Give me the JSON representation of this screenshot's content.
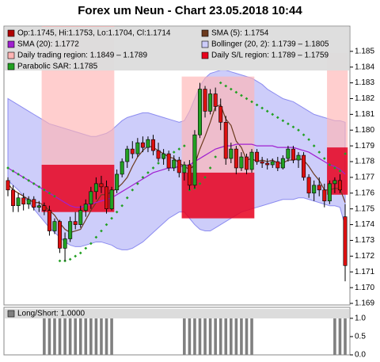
{
  "chart_data": [
    {
      "type": "candlestick",
      "title": "Forex um Neun - Chart 23.05.2018 10:44",
      "candle_label": "Op:1.1745, Hi:1.1753, Lo:1.1704, Cl:1.1714",
      "candle_color": "#b00000",
      "up_color": "#22a022",
      "down_color": "#dd1010",
      "open": [
        1.1768,
        1.1762,
        1.1752,
        1.1757,
        1.1753,
        1.1756,
        1.1751,
        1.1752,
        1.1749,
        1.1736,
        1.1742,
        1.1725,
        1.1731,
        1.1742,
        1.174,
        1.1749,
        1.1753,
        1.1761,
        1.1766,
        1.1764,
        1.175,
        1.1762,
        1.1772,
        1.178,
        1.1788,
        1.1785,
        1.1792,
        1.1789,
        1.1794,
        1.1787,
        1.1782,
        1.1785,
        1.1776,
        1.1781,
        1.1773,
        1.1778,
        1.1765,
        1.1797,
        1.1826,
        1.1812,
        1.1823,
        1.1815,
        1.1805,
        1.1782,
        1.1788,
        1.1776,
        1.1783,
        1.1775,
        1.1786,
        1.178,
        1.1779,
        1.1778,
        1.178,
        1.1776,
        1.1782,
        1.1788,
        1.1781,
        1.1784,
        1.177,
        1.176,
        1.1765,
        1.1762,
        1.1755,
        1.1766,
        1.1768,
        1.1745
      ],
      "high": [
        1.177,
        1.1765,
        1.176,
        1.176,
        1.1758,
        1.1758,
        1.1755,
        1.1754,
        1.1752,
        1.1744,
        1.1743,
        1.1735,
        1.1745,
        1.1748,
        1.1752,
        1.1756,
        1.1764,
        1.177,
        1.1771,
        1.1768,
        1.1764,
        1.1775,
        1.1782,
        1.179,
        1.1793,
        1.1795,
        1.1796,
        1.1796,
        1.1797,
        1.1792,
        1.1788,
        1.1787,
        1.1784,
        1.1783,
        1.178,
        1.1781,
        1.18,
        1.183,
        1.1828,
        1.1826,
        1.1827,
        1.182,
        1.1809,
        1.1792,
        1.179,
        1.1786,
        1.1785,
        1.1788,
        1.1788,
        1.1783,
        1.1782,
        1.1782,
        1.1783,
        1.1784,
        1.179,
        1.179,
        1.1786,
        1.1786,
        1.1772,
        1.1768,
        1.177,
        1.1766,
        1.1768,
        1.177,
        1.1772,
        1.1753
      ],
      "low": [
        1.1758,
        1.1748,
        1.1748,
        1.1749,
        1.175,
        1.1749,
        1.1748,
        1.1746,
        1.1733,
        1.1734,
        1.1722,
        1.1717,
        1.1729,
        1.1737,
        1.1738,
        1.1745,
        1.175,
        1.1756,
        1.176,
        1.1747,
        1.1749,
        1.176,
        1.177,
        1.1776,
        1.1782,
        1.1783,
        1.1786,
        1.1786,
        1.1784,
        1.178,
        1.1778,
        1.1774,
        1.1774,
        1.177,
        1.1768,
        1.1762,
        1.1763,
        1.1795,
        1.1808,
        1.181,
        1.1812,
        1.18,
        1.1778,
        1.1779,
        1.1772,
        1.1774,
        1.1772,
        1.1773,
        1.1778,
        1.1776,
        1.1775,
        1.1776,
        1.1774,
        1.1775,
        1.178,
        1.1779,
        1.1776,
        1.1768,
        1.1757,
        1.1755,
        1.1758,
        1.1751,
        1.1753,
        1.176,
        1.176,
        1.1704
      ],
      "close": [
        1.1762,
        1.1752,
        1.1757,
        1.1753,
        1.1756,
        1.1751,
        1.1752,
        1.1749,
        1.1736,
        1.1742,
        1.1725,
        1.1731,
        1.1742,
        1.174,
        1.1749,
        1.1753,
        1.1761,
        1.1766,
        1.1764,
        1.175,
        1.1762,
        1.1772,
        1.178,
        1.1788,
        1.1785,
        1.1792,
        1.1789,
        1.1794,
        1.1787,
        1.1782,
        1.1785,
        1.1776,
        1.1781,
        1.1773,
        1.1778,
        1.1765,
        1.1797,
        1.1826,
        1.1812,
        1.1823,
        1.1815,
        1.1805,
        1.1782,
        1.1788,
        1.1776,
        1.1783,
        1.1775,
        1.1786,
        1.178,
        1.1779,
        1.1778,
        1.178,
        1.1776,
        1.1782,
        1.1788,
        1.1781,
        1.1784,
        1.177,
        1.176,
        1.1765,
        1.1762,
        1.1755,
        1.1766,
        1.1768,
        1.1762,
        1.1714
      ],
      "series": [
        {
          "name": "SMA (5): 1.1754",
          "color": "#6b3a1e",
          "values": [
            1.1766,
            1.1762,
            1.176,
            1.1758,
            1.1756,
            1.1754,
            1.1754,
            1.1752,
            1.1749,
            1.1746,
            1.1741,
            1.1737,
            1.1735,
            1.1736,
            1.1737,
            1.1743,
            1.1749,
            1.1754,
            1.1759,
            1.1759,
            1.1761,
            1.1763,
            1.1766,
            1.177,
            1.1777,
            1.1783,
            1.1787,
            1.179,
            1.1789,
            1.1787,
            1.1785,
            1.1783,
            1.1782,
            1.1779,
            1.1777,
            1.1775,
            1.1778,
            1.1788,
            1.1796,
            1.1805,
            1.1815,
            1.1816,
            1.1807,
            1.1803,
            1.1793,
            1.1789,
            1.1781,
            1.1782,
            1.178,
            1.1781,
            1.178,
            1.1781,
            1.1779,
            1.1779,
            1.1781,
            1.1781,
            1.1782,
            1.1781,
            1.1777,
            1.1772,
            1.1768,
            1.1762,
            1.1762,
            1.1763,
            1.1763,
            1.1754
          ]
        },
        {
          "name": "SMA (20): 1.1772",
          "color": "#a020d0",
          "values": [
            1.1776,
            1.1774,
            1.1772,
            1.177,
            1.1768,
            1.1766,
            1.1764,
            1.1762,
            1.176,
            1.1758,
            1.1756,
            1.1754,
            1.1752,
            1.1751,
            1.1751,
            1.1752,
            1.1753,
            1.1754,
            1.1755,
            1.1756,
            1.1757,
            1.1759,
            1.1761,
            1.1763,
            1.1765,
            1.1767,
            1.1769,
            1.1771,
            1.1773,
            1.1774,
            1.1775,
            1.1776,
            1.1776,
            1.1777,
            1.1777,
            1.1778,
            1.178,
            1.1782,
            1.1784,
            1.1786,
            1.1788,
            1.1789,
            1.179,
            1.179,
            1.1791,
            1.1791,
            1.1791,
            1.1791,
            1.179,
            1.179,
            1.179,
            1.179,
            1.1789,
            1.1789,
            1.1789,
            1.1789,
            1.1788,
            1.1787,
            1.1786,
            1.1784,
            1.1782,
            1.178,
            1.1778,
            1.1777,
            1.1775,
            1.1772
          ]
        },
        {
          "name": "Parabolic SAR: 1.1785",
          "color": "#22a022",
          "style": "dots",
          "values": [
            1.1776,
            1.1774,
            1.1772,
            1.177,
            1.1768,
            1.1766,
            1.1764,
            1.1762,
            1.176,
            1.1758,
            1.1717,
            1.1717,
            1.1718,
            1.172,
            1.1722,
            1.1725,
            1.1728,
            1.1732,
            1.1736,
            1.174,
            1.1744,
            1.1748,
            1.1752,
            1.1757,
            1.1762,
            1.1766,
            1.177,
            1.1773,
            1.1776,
            1.1779,
            1.1782,
            1.1784,
            1.1786,
            1.1788,
            1.179,
            1.1762,
            1.1763,
            1.1766,
            1.177,
            1.1776,
            1.1783,
            1.183,
            1.1828,
            1.1826,
            1.1824,
            1.1822,
            1.182,
            1.1818,
            1.1816,
            1.1814,
            1.1812,
            1.181,
            1.1808,
            1.1806,
            1.1804,
            1.1802,
            1.18,
            1.1797,
            1.1794,
            1.179,
            1.1786,
            1.1782,
            1.1778,
            1.1776,
            1.1774,
            1.1785
          ]
        }
      ],
      "band": {
        "name": "Bollinger (20, 2): 1.1739 – 1.1805",
        "color": "#8c8cf0",
        "fill": "#cdcdfa",
        "upper": [
          1.182,
          1.1818,
          1.1816,
          1.1814,
          1.1812,
          1.181,
          1.1808,
          1.1806,
          1.1804,
          1.1803,
          1.1802,
          1.1801,
          1.18,
          1.1799,
          1.1798,
          1.1797,
          1.1796,
          1.1796,
          1.1797,
          1.1798,
          1.18,
          1.1803,
          1.1806,
          1.1808,
          1.1809,
          1.181,
          1.1811,
          1.1811,
          1.181,
          1.1809,
          1.1808,
          1.1807,
          1.1806,
          1.1805,
          1.1806,
          1.1812,
          1.182,
          1.1828,
          1.1833,
          1.1836,
          1.1837,
          1.1838,
          1.1838,
          1.1837,
          1.1836,
          1.1835,
          1.1834,
          1.1833,
          1.1831,
          1.1829,
          1.1826,
          1.1824,
          1.1822,
          1.182,
          1.1819,
          1.1818,
          1.1816,
          1.1814,
          1.1812,
          1.181,
          1.1809,
          1.1808,
          1.1807,
          1.1806,
          1.1806,
          1.1805
        ],
        "lower": [
          1.1768,
          1.1765,
          1.1762,
          1.1758,
          1.1754,
          1.175,
          1.1746,
          1.1742,
          1.1738,
          1.1735,
          1.1732,
          1.1729,
          1.1727,
          1.1726,
          1.1726,
          1.1727,
          1.1728,
          1.1729,
          1.1729,
          1.1728,
          1.1727,
          1.1725,
          1.1724,
          1.1724,
          1.1725,
          1.1727,
          1.1729,
          1.1732,
          1.1735,
          1.1738,
          1.1741,
          1.1744,
          1.1746,
          1.1748,
          1.1748,
          1.1744,
          1.174,
          1.1737,
          1.1736,
          1.1736,
          1.1738,
          1.174,
          1.1742,
          1.1744,
          1.1746,
          1.1748,
          1.1749,
          1.175,
          1.1751,
          1.1752,
          1.1753,
          1.1754,
          1.1755,
          1.1756,
          1.1756,
          1.1756,
          1.1757,
          1.1757,
          1.1756,
          1.1755,
          1.1754,
          1.1753,
          1.1752,
          1.1752,
          1.1751,
          1.1739
        ]
      },
      "regions": [
        {
          "name": "Daily trading region: 1.1849 – 1.1789",
          "color": "#ffb4b4",
          "spans": [
            {
              "start": 7,
              "end": 20,
              "high": 1.1866,
              "low": 1.1778
            },
            {
              "start": 34,
              "end": 47,
              "high": 1.1834,
              "low": 1.1773
            },
            {
              "start": 62,
              "end": 65,
              "high": 1.1849,
              "low": 1.1789
            }
          ]
        },
        {
          "name": "Daily S/L region: 1.1789 – 1.1759",
          "color": "#e8001c",
          "spans": [
            {
              "start": 7,
              "end": 20,
              "high": 1.1778,
              "low": 1.1748
            },
            {
              "start": 34,
              "end": 47,
              "high": 1.1773,
              "low": 1.1744
            },
            {
              "start": 62,
              "end": 65,
              "high": 1.1789,
              "low": 1.1759
            }
          ]
        }
      ],
      "ylim": [
        1.1689,
        1.1866
      ],
      "yticks": [
        1.169,
        {
          "value": 1.17,
          "label": "1.170"
        },
        1.171,
        1.172,
        1.173,
        1.174,
        1.175,
        1.176,
        1.177,
        1.178,
        1.179,
        {
          "value": 1.18,
          "label": "1.180"
        },
        1.181,
        1.182,
        1.183,
        1.184,
        1.185
      ]
    },
    {
      "type": "bar",
      "label": "Long/Short: 1.0000",
      "color": "#808080",
      "values": [
        0,
        0,
        0,
        0,
        0,
        0,
        0,
        1,
        1,
        1,
        1,
        1,
        1,
        1,
        1,
        1,
        1,
        1,
        1,
        1,
        1,
        0,
        0,
        0,
        0,
        0,
        0,
        0,
        0,
        0,
        0,
        0,
        0,
        0,
        1,
        1,
        1,
        1,
        1,
        1,
        1,
        1,
        1,
        1,
        1,
        1,
        1,
        1,
        0,
        0,
        0,
        0,
        0,
        0,
        0,
        0,
        0,
        0,
        0,
        0,
        0,
        0,
        0,
        1,
        1,
        1
      ],
      "ylim": [
        0,
        1.3
      ],
      "yticks": [
        {
          "value": 0,
          "label": "0.0"
        },
        {
          "value": 0.5,
          "label": "0.5"
        },
        {
          "value": 1,
          "label": "1.0"
        }
      ]
    }
  ]
}
